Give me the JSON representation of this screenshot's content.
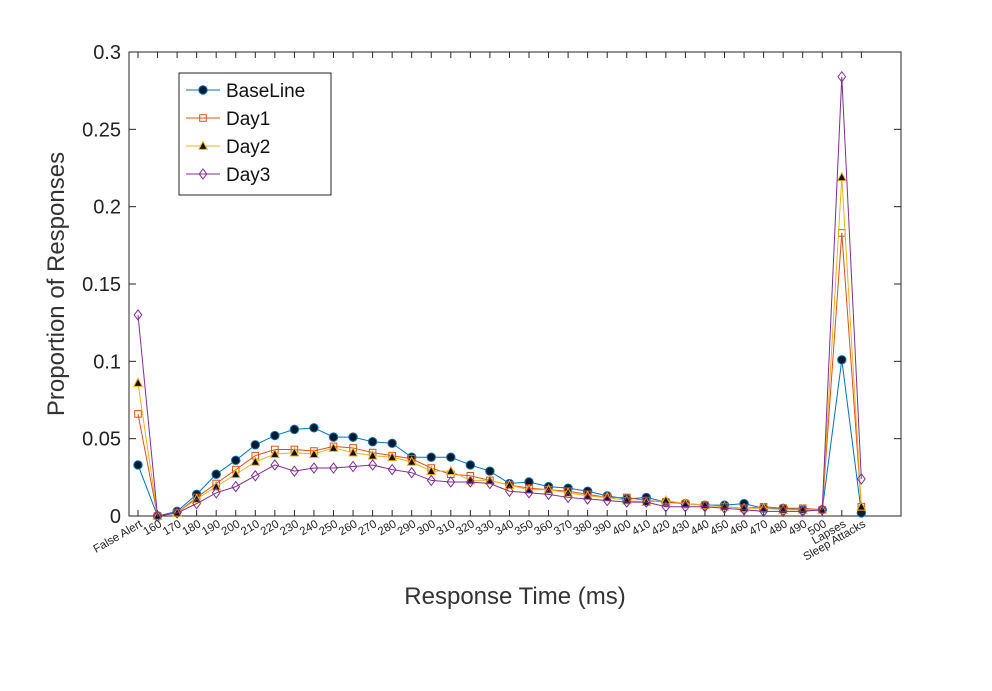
{
  "chart_data": {
    "type": "line",
    "title": "",
    "xlabel": "Response Time (ms)",
    "ylabel": "Proportion of Responses",
    "ylim": [
      0,
      0.3
    ],
    "yticks": [
      "0",
      "0.05",
      "0.1",
      "0.15",
      "0.2",
      "0.25",
      "0.3"
    ],
    "categories": [
      "False Alert",
      "160",
      "170",
      "180",
      "190",
      "200",
      "210",
      "220",
      "230",
      "240",
      "250",
      "260",
      "270",
      "280",
      "290",
      "300",
      "310",
      "320",
      "330",
      "340",
      "350",
      "360",
      "370",
      "380",
      "390",
      "400",
      "410",
      "420",
      "430",
      "440",
      "450",
      "460",
      "470",
      "480",
      "490",
      "500",
      "Lapses",
      "Sleep Attacks"
    ],
    "grid": false,
    "legend_position": "top-left",
    "series": [
      {
        "name": "BaseLine",
        "color": "#0072BD",
        "marker": "circle",
        "values": [
          0.033,
          0.0,
          0.003,
          0.014,
          0.027,
          0.036,
          0.046,
          0.052,
          0.056,
          0.057,
          0.051,
          0.051,
          0.048,
          0.047,
          0.038,
          0.038,
          0.038,
          0.033,
          0.029,
          0.021,
          0.022,
          0.019,
          0.018,
          0.016,
          0.013,
          0.011,
          0.012,
          0.009,
          0.008,
          0.007,
          0.007,
          0.008,
          0.005,
          0.005,
          0.004,
          0.004,
          0.101,
          0.002
        ]
      },
      {
        "name": "Day1",
        "color": "#D95319",
        "marker": "square",
        "values": [
          0.066,
          0.0,
          0.002,
          0.012,
          0.021,
          0.03,
          0.039,
          0.043,
          0.043,
          0.042,
          0.045,
          0.044,
          0.041,
          0.039,
          0.037,
          0.031,
          0.027,
          0.026,
          0.023,
          0.02,
          0.018,
          0.017,
          0.016,
          0.014,
          0.012,
          0.012,
          0.01,
          0.009,
          0.008,
          0.007,
          0.006,
          0.005,
          0.006,
          0.005,
          0.005,
          0.004,
          0.183,
          0.006
        ]
      },
      {
        "name": "Day2",
        "color": "#EDB120",
        "marker": "triangle",
        "values": [
          0.086,
          0.0,
          0.002,
          0.011,
          0.019,
          0.027,
          0.035,
          0.04,
          0.041,
          0.04,
          0.044,
          0.041,
          0.039,
          0.038,
          0.035,
          0.029,
          0.029,
          0.023,
          0.023,
          0.02,
          0.017,
          0.017,
          0.015,
          0.013,
          0.012,
          0.01,
          0.009,
          0.01,
          0.008,
          0.007,
          0.006,
          0.005,
          0.005,
          0.004,
          0.004,
          0.004,
          0.219,
          0.006
        ]
      },
      {
        "name": "Day3",
        "color": "#7E2F8E",
        "marker": "diamond",
        "values": [
          0.13,
          0.0,
          0.002,
          0.008,
          0.015,
          0.019,
          0.026,
          0.033,
          0.029,
          0.031,
          0.031,
          0.032,
          0.033,
          0.03,
          0.028,
          0.023,
          0.022,
          0.022,
          0.021,
          0.016,
          0.015,
          0.014,
          0.012,
          0.011,
          0.01,
          0.009,
          0.009,
          0.006,
          0.006,
          0.006,
          0.005,
          0.004,
          0.003,
          0.003,
          0.003,
          0.004,
          0.284,
          0.024
        ]
      }
    ]
  }
}
